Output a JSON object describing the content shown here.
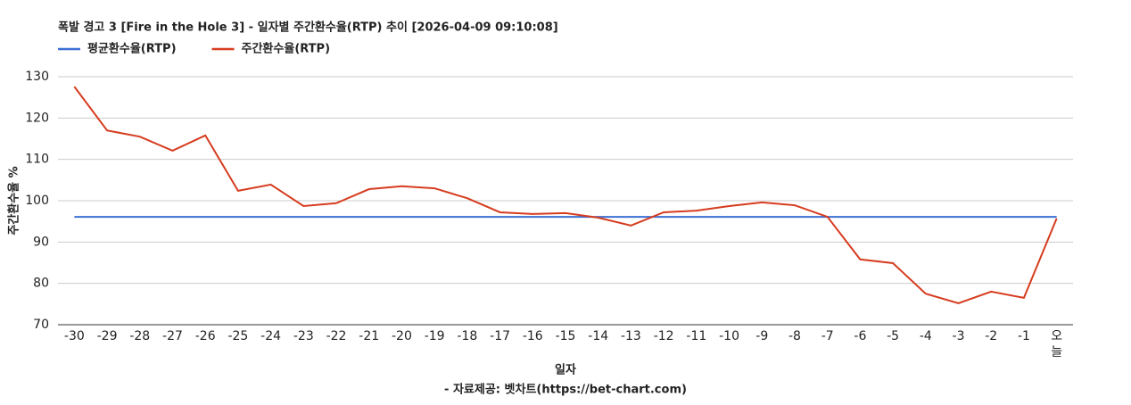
{
  "chart_data": {
    "type": "line",
    "title": "폭발 경고 3 [Fire in the Hole 3] - 일자별 주간환수율(RTP) 추이 [2026-04-09 09:10:08]",
    "x_label": "일자",
    "y_label": "주간환수율 %",
    "footer": "- 자료제공: 벳차트(https://bet-chart.com)",
    "categories": [
      "-30",
      "-29",
      "-28",
      "-27",
      "-26",
      "-25",
      "-24",
      "-23",
      "-22",
      "-21",
      "-20",
      "-19",
      "-18",
      "-17",
      "-16",
      "-15",
      "-14",
      "-13",
      "-12",
      "-11",
      "-10",
      "-9",
      "-8",
      "-7",
      "-6",
      "-5",
      "-4",
      "-3",
      "-2",
      "-1",
      "오늘"
    ],
    "series": [
      {
        "name": "평균환수율(RTP)",
        "color": "#3b6fd4",
        "values": [
          96.1,
          96.1,
          96.1,
          96.1,
          96.1,
          96.1,
          96.1,
          96.1,
          96.1,
          96.1,
          96.1,
          96.1,
          96.1,
          96.1,
          96.1,
          96.1,
          96.1,
          96.1,
          96.1,
          96.1,
          96.1,
          96.1,
          96.1,
          96.1,
          96.1,
          96.1,
          96.1,
          96.1,
          96.1,
          96.1,
          96.1
        ]
      },
      {
        "name": "주간환수율(RTP)",
        "color": "#d63c1f",
        "values": [
          127.6,
          117.0,
          115.5,
          112.1,
          115.8,
          102.4,
          103.9,
          98.7,
          99.4,
          102.8,
          103.5,
          103.0,
          100.6,
          97.2,
          96.8,
          97.0,
          95.9,
          94.0,
          97.2,
          97.6,
          98.7,
          99.6,
          98.9,
          96.1,
          85.8,
          84.9,
          77.5,
          75.2,
          78.0,
          76.5,
          95.7
        ]
      }
    ],
    "ylim": [
      70,
      130
    ],
    "yticks": [
      70,
      80,
      90,
      100,
      110,
      120,
      130
    ],
    "grid": true,
    "legend": "top-left"
  }
}
